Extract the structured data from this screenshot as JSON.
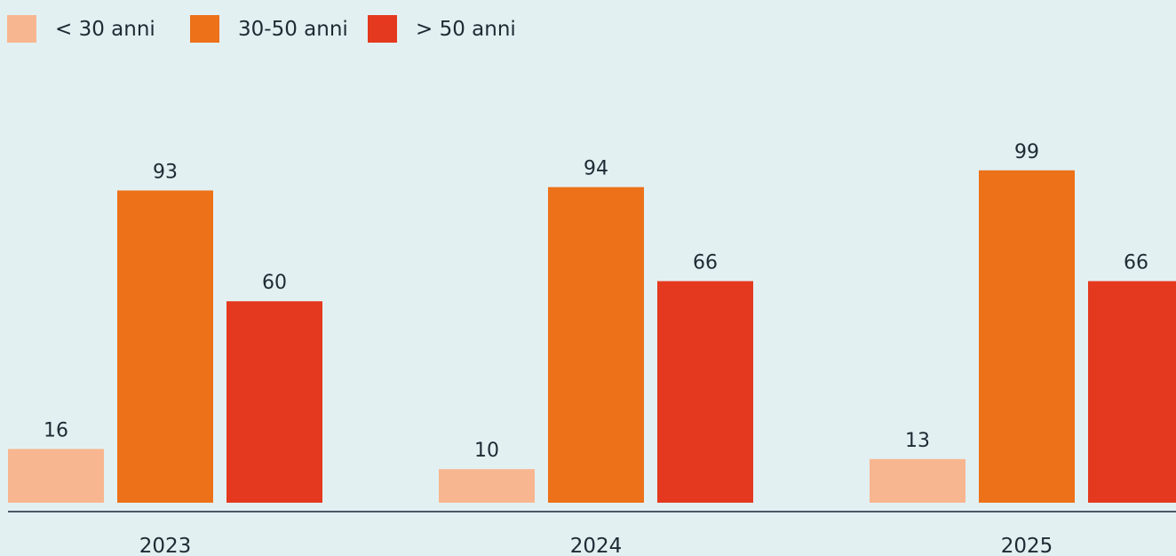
{
  "chart_data": {
    "type": "bar",
    "categories": [
      "2023",
      "2024",
      "2025"
    ],
    "series": [
      {
        "name": "< 30 anni",
        "color": "#f8b690",
        "values": [
          16,
          10,
          13
        ]
      },
      {
        "name": "30-50 anni",
        "color": "#ec7118",
        "values": [
          93,
          94,
          99
        ]
      },
      {
        "name": "> 50 anni",
        "color": "#e4391f",
        "values": [
          60,
          66,
          66
        ]
      }
    ],
    "data_labels": [
      [
        "16",
        "10",
        "13"
      ],
      [
        "93",
        "94",
        "99"
      ],
      [
        "60",
        "66",
        "66"
      ]
    ],
    "title": "",
    "xlabel": "",
    "ylabel": "",
    "ylim": [
      0,
      110
    ],
    "grid": false,
    "legend_position": "top-left",
    "axis_color": "#4a5a68"
  }
}
